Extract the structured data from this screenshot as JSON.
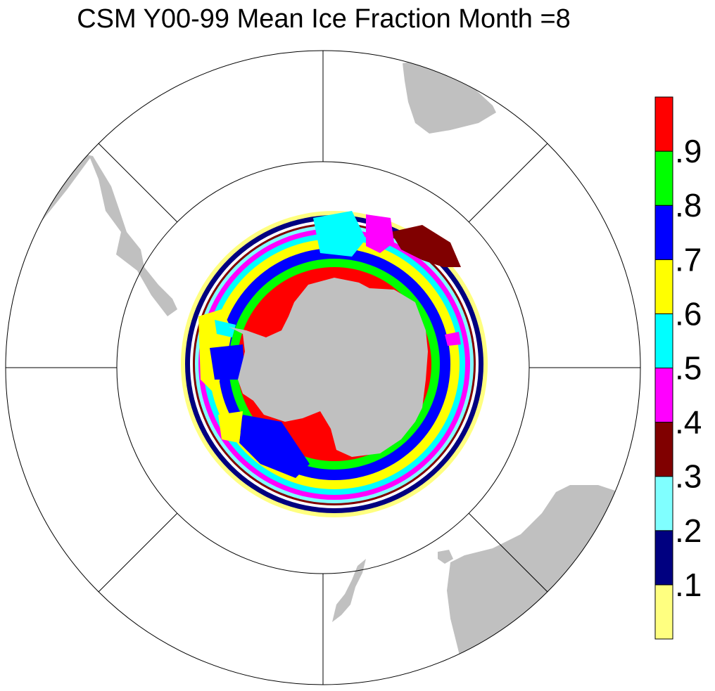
{
  "title": "CSM Y00-99 Mean Ice Fraction Month =8",
  "colors": {
    "land": "#c0c0c0",
    "gridline": "#000000",
    "background": "#ffffff"
  },
  "legend": {
    "colors": [
      "#ffff80",
      "#000080",
      "#80ffff",
      "#800000",
      "#ff00ff",
      "#00ffff",
      "#ffff00",
      "#0000ff",
      "#00ff00",
      "#ff0000"
    ],
    "labels": [
      ".1",
      ".2",
      ".3",
      ".4",
      ".5",
      ".6",
      ".7",
      ".8",
      ".9"
    ]
  }
}
